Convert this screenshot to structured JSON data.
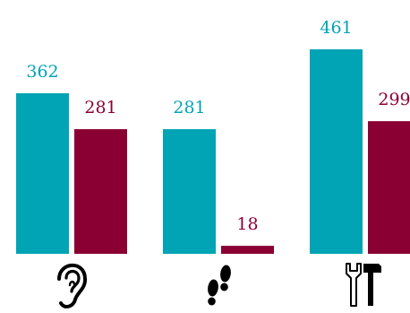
{
  "chart_data": {
    "type": "bar",
    "title": "",
    "xlabel": "",
    "ylabel": "",
    "categories": [
      {
        "icon": "ear-icon"
      },
      {
        "icon": "footprints-icon"
      },
      {
        "icon": "tools-icon"
      }
    ],
    "series": [
      {
        "color": "#00a4b4",
        "values": [
          362,
          281,
          461
        ]
      },
      {
        "color": "#8b0033",
        "values": [
          281,
          18,
          299
        ]
      }
    ],
    "ylim": [
      0,
      461
    ],
    "grid": false,
    "legend": "none"
  }
}
